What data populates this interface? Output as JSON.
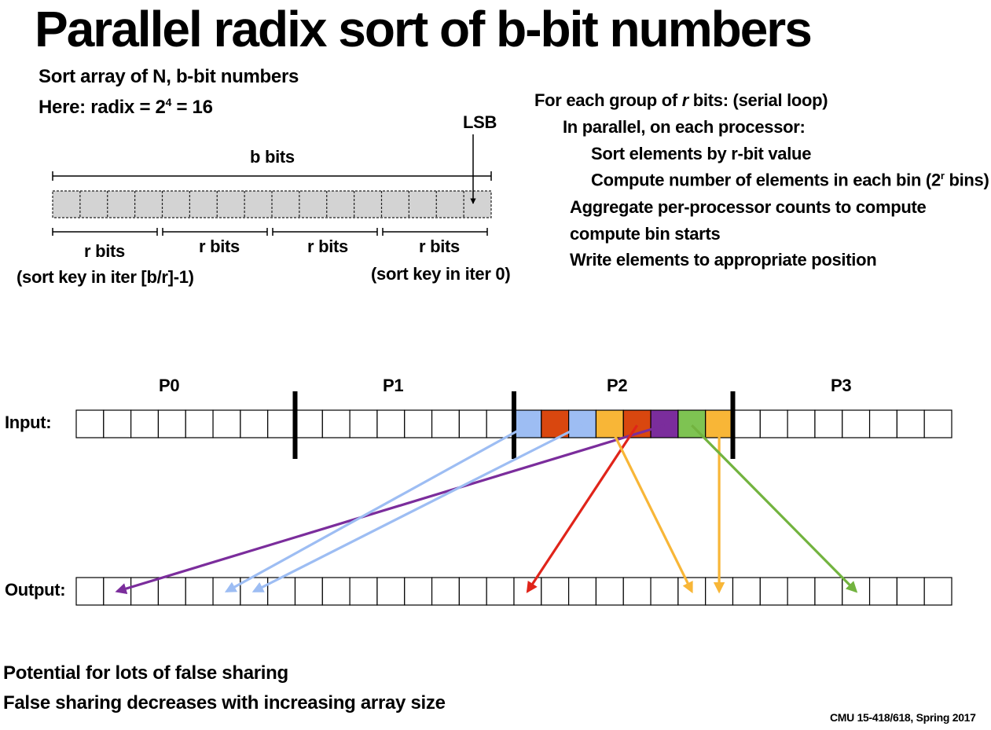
{
  "title": "Parallel radix sort of b-bit numbers",
  "intro": {
    "line1": "Sort array of N, b-bit numbers",
    "line2_prefix": "Here: radix = 2",
    "line2_sup": "4",
    "line2_suffix": " = 16"
  },
  "key_diagram": {
    "lsb_label": "LSB",
    "b_bits_label": "b bits",
    "r_bits_label": "r bits",
    "first_group_caption": "(sort key in iter [b/r]-1)",
    "last_group_caption": "(sort key in iter 0)",
    "cell_count": 16
  },
  "algorithm": {
    "line1_prefix": "For each group of ",
    "line1_r": "r",
    "line1_suffix": " bits:  (serial loop)",
    "line2": "In parallel, on each processor:",
    "line3": "Sort elements by r-bit value",
    "line4_prefix": "Compute number of elements in each bin (2",
    "line4_sup": "r",
    "line4_suffix": " bins)",
    "line5": "Aggregate per-processor counts to compute",
    "line6": "compute bin starts",
    "line7": "Write elements to appropriate position"
  },
  "arrays": {
    "input_label": "Input:",
    "output_label": "Output:",
    "processors": [
      "P0",
      "P1",
      "P2",
      "P3"
    ],
    "cells_per_processor": 8,
    "p2_cell_colors": [
      "#9dbdf3",
      "#d9470f",
      "#9dbdf3",
      "#f8b637",
      "#d9470f",
      "#7b2d9c",
      "#7ec352",
      "#f8b637"
    ]
  },
  "arrows": [
    {
      "color": "#7b2d9c",
      "from_input_cell": 21,
      "to_output_cell": 1
    },
    {
      "color": "#9dbdf3",
      "from_input_cell": 16,
      "to_output_cell": 5
    },
    {
      "color": "#9dbdf3",
      "from_input_cell": 18,
      "to_output_cell": 6
    },
    {
      "color": "#e0241a",
      "from_input_cell": 20,
      "to_output_cell": 16
    },
    {
      "color": "#f8b637",
      "from_input_cell": 19,
      "to_output_cell": 22
    },
    {
      "color": "#f8b637",
      "from_input_cell": 23,
      "to_output_cell": 23
    },
    {
      "color": "#72b33f",
      "from_input_cell": 22,
      "to_output_cell": 28
    }
  ],
  "footer": {
    "line1": "Potential for lots of false sharing",
    "line2": "False sharing decreases with increasing array size",
    "credit": "CMU 15-418/618, Spring 2017"
  }
}
